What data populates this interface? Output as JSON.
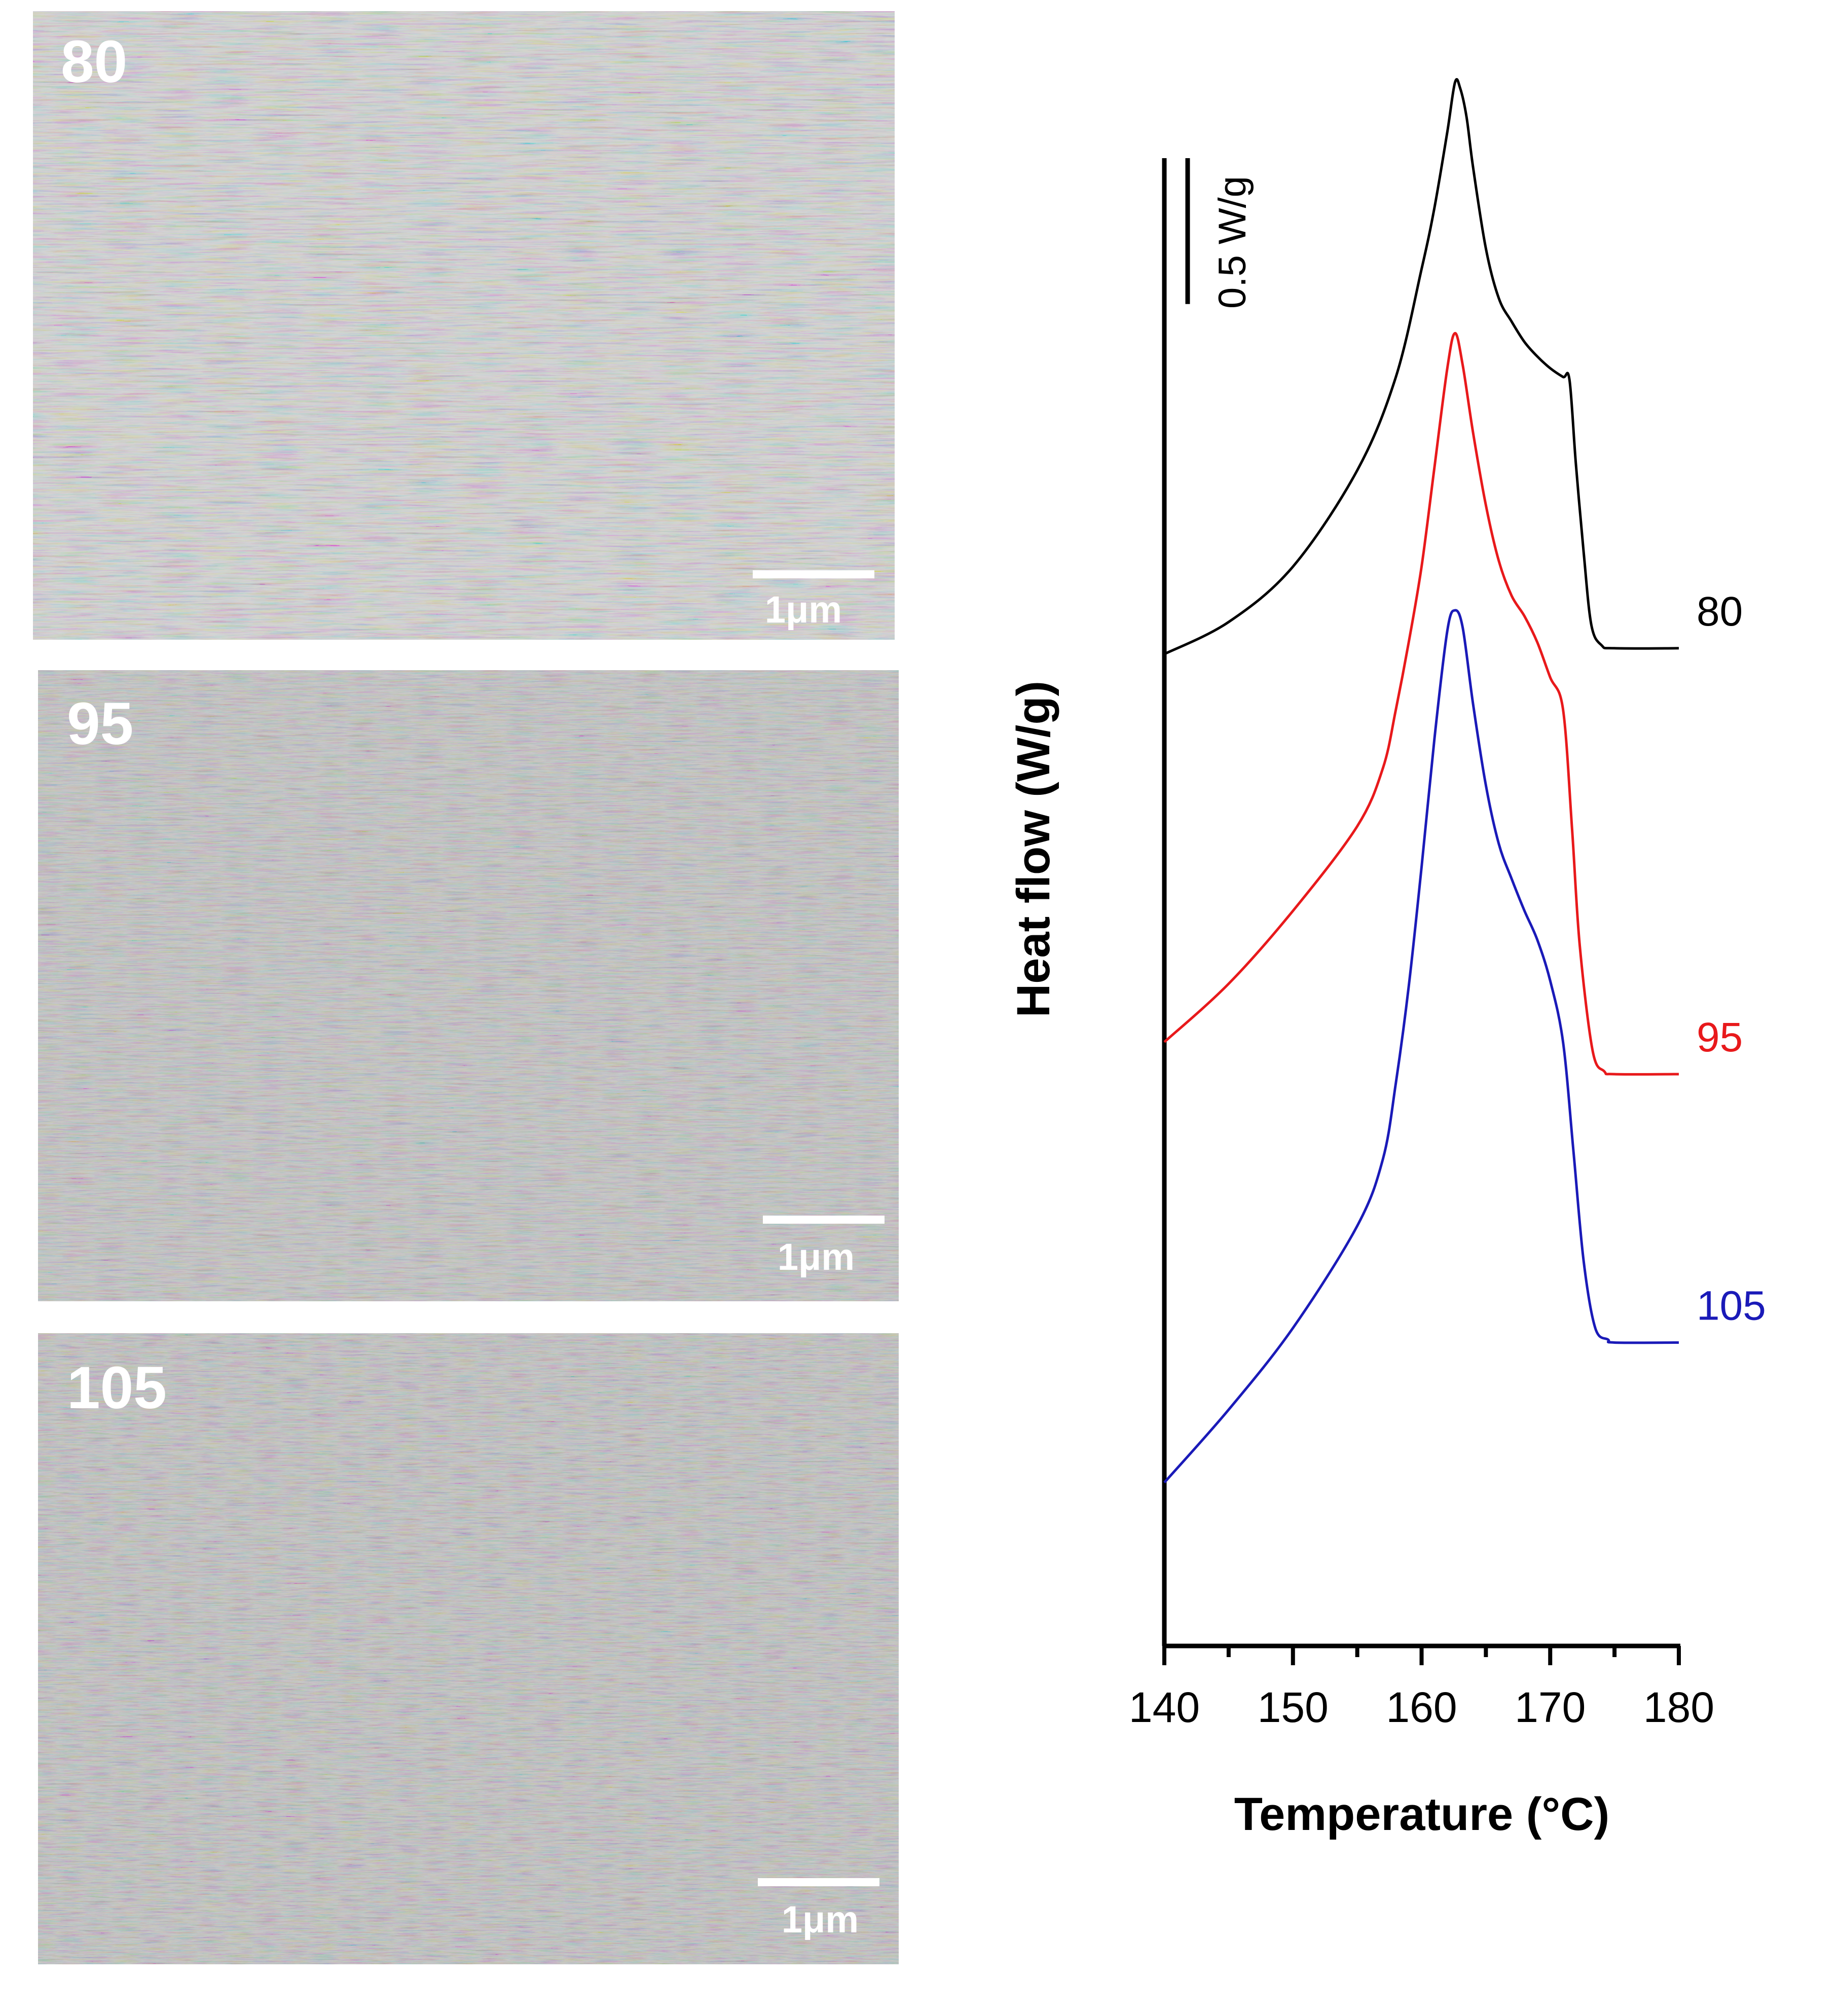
{
  "sem_images": [
    {
      "label": "80",
      "scale_bar_label": "1μm"
    },
    {
      "label": "95",
      "scale_bar_label": "1μm"
    },
    {
      "label": "105",
      "scale_bar_label": "1μm"
    }
  ],
  "chart_data": {
    "type": "line",
    "title": "",
    "xlabel": "Temperature (°C)",
    "ylabel": "Heat flow (W/g)",
    "xlim": [
      140,
      180
    ],
    "x_major_ticks": [
      140,
      150,
      160,
      170,
      180
    ],
    "x_tick_labels": [
      "140",
      "150",
      "160",
      "170",
      "180"
    ],
    "x_minor_ticks": [
      145,
      155,
      165,
      175
    ],
    "ylim": [
      -0.2,
      4.9
    ],
    "y_ticks_shown": false,
    "scale_bar": {
      "label": "0.5 W/g",
      "value": 0.5
    },
    "series": [
      {
        "name": "80",
        "color": "#000000",
        "points": [
          [
            140,
            3.2
          ],
          [
            145,
            3.31
          ],
          [
            150,
            3.5
          ],
          [
            155,
            3.83
          ],
          [
            158,
            4.15
          ],
          [
            160,
            4.52
          ],
          [
            161,
            4.73
          ],
          [
            162,
            4.99
          ],
          [
            162.6,
            5.16
          ],
          [
            163,
            5.14
          ],
          [
            163.5,
            5.04
          ],
          [
            164,
            4.87
          ],
          [
            165,
            4.59
          ],
          [
            166,
            4.42
          ],
          [
            167,
            4.34
          ],
          [
            168,
            4.27
          ],
          [
            169,
            4.22
          ],
          [
            170,
            4.18
          ],
          [
            171,
            4.15
          ],
          [
            171.5,
            4.14
          ],
          [
            172,
            3.85
          ],
          [
            172.6,
            3.55
          ],
          [
            173.2,
            3.3
          ],
          [
            174,
            3.23
          ],
          [
            175,
            3.22
          ],
          [
            180,
            3.22
          ]
        ]
      },
      {
        "name": "95",
        "color": "#e8191b",
        "points": [
          [
            140,
            1.87
          ],
          [
            145,
            2.07
          ],
          [
            150,
            2.32
          ],
          [
            155,
            2.61
          ],
          [
            157,
            2.81
          ],
          [
            158,
            3.01
          ],
          [
            159,
            3.24
          ],
          [
            160,
            3.5
          ],
          [
            161,
            3.84
          ],
          [
            162,
            4.18
          ],
          [
            162.6,
            4.3
          ],
          [
            163.2,
            4.19
          ],
          [
            164,
            3.96
          ],
          [
            165,
            3.71
          ],
          [
            166,
            3.52
          ],
          [
            167,
            3.4
          ],
          [
            168,
            3.33
          ],
          [
            169,
            3.24
          ],
          [
            170,
            3.12
          ],
          [
            171,
            3.01
          ],
          [
            171.7,
            2.6
          ],
          [
            172.3,
            2.2
          ],
          [
            173.3,
            1.84
          ],
          [
            174.2,
            1.77
          ],
          [
            175,
            1.76
          ],
          [
            180,
            1.76
          ]
        ]
      },
      {
        "name": "105",
        "color": "#1a1ab8",
        "points": [
          [
            140,
            0.36
          ],
          [
            145,
            0.61
          ],
          [
            150,
            0.89
          ],
          [
            155,
            1.24
          ],
          [
            157,
            1.47
          ],
          [
            158,
            1.73
          ],
          [
            159,
            2.06
          ],
          [
            160,
            2.47
          ],
          [
            161,
            2.91
          ],
          [
            162,
            3.28
          ],
          [
            162.6,
            3.35
          ],
          [
            163.2,
            3.29
          ],
          [
            164,
            3.03
          ],
          [
            165,
            2.75
          ],
          [
            166,
            2.55
          ],
          [
            167,
            2.43
          ],
          [
            168,
            2.32
          ],
          [
            169,
            2.22
          ],
          [
            170,
            2.08
          ],
          [
            171,
            1.87
          ],
          [
            171.8,
            1.5
          ],
          [
            172.6,
            1.12
          ],
          [
            173.5,
            0.89
          ],
          [
            174.5,
            0.85
          ],
          [
            175,
            0.84
          ],
          [
            180,
            0.84
          ]
        ]
      }
    ]
  }
}
